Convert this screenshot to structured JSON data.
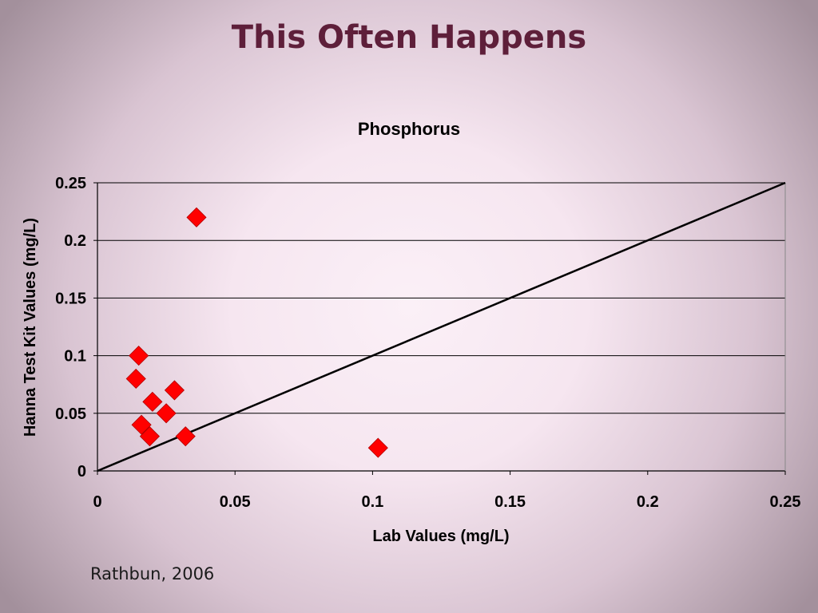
{
  "slide": {
    "title": "This Often Happens",
    "citation": "Rathbun, 2006"
  },
  "chart_data": {
    "type": "scatter",
    "title": "Phosphorus",
    "xlabel": "Lab Values (mg/L)",
    "ylabel": "Hanna Test Kit Values (mg/L)",
    "xlim": [
      0,
      0.25
    ],
    "ylim": [
      0,
      0.25
    ],
    "x_ticks": [
      "0",
      "0.05",
      "0.1",
      "0.15",
      "0.2",
      "0.25"
    ],
    "y_ticks": [
      "0",
      "0.05",
      "0.1",
      "0.15",
      "0.2",
      "0.25"
    ],
    "grid": "horizontal",
    "legend": "none",
    "marker": "diamond",
    "marker_color": "#ff0000",
    "points": [
      {
        "x": 0.036,
        "y": 0.22
      },
      {
        "x": 0.015,
        "y": 0.1
      },
      {
        "x": 0.014,
        "y": 0.08
      },
      {
        "x": 0.028,
        "y": 0.07
      },
      {
        "x": 0.02,
        "y": 0.06
      },
      {
        "x": 0.025,
        "y": 0.05
      },
      {
        "x": 0.016,
        "y": 0.04
      },
      {
        "x": 0.019,
        "y": 0.03
      },
      {
        "x": 0.032,
        "y": 0.03
      },
      {
        "x": 0.102,
        "y": 0.02
      }
    ],
    "reference_line": {
      "from": [
        0,
        0
      ],
      "to": [
        0.25,
        0.25
      ],
      "color": "#000000"
    }
  }
}
